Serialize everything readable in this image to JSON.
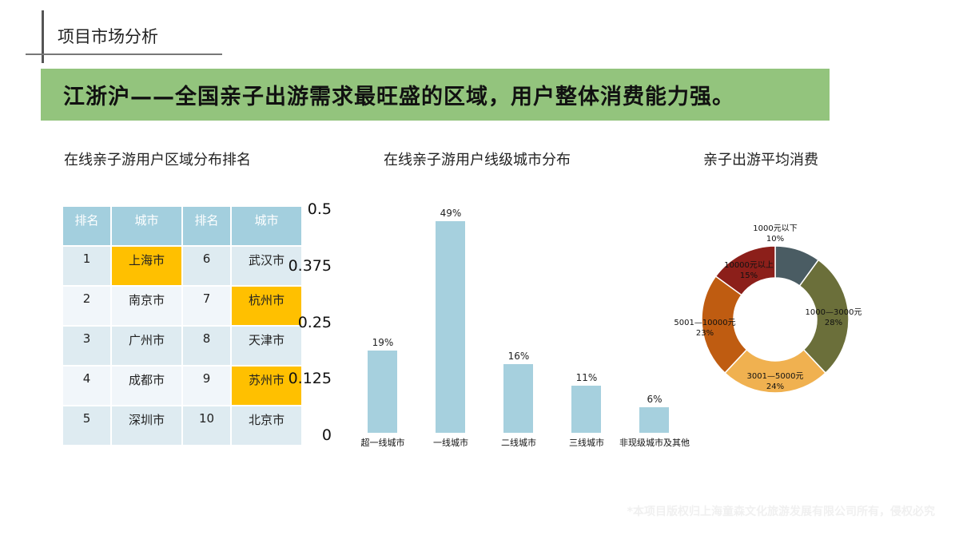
{
  "header": {
    "title": "项目市场分析",
    "banner": "江浙沪——全国亲子出游需求最旺盛的区域，用户整体消费能力强。"
  },
  "sections": {
    "ranking_title": "在线亲子游用户区域分布排名",
    "tier_title": "在线亲子游用户线级城市分布",
    "spend_title": "亲子出游平均消费"
  },
  "table": {
    "headers": [
      "排名",
      "城市",
      "排名",
      "城市"
    ],
    "rows": [
      {
        "rank_a": "1",
        "city_a": "上海市",
        "hl_a": true,
        "rank_b": "6",
        "city_b": "武汉市",
        "hl_b": false
      },
      {
        "rank_a": "2",
        "city_a": "南京市",
        "hl_a": false,
        "rank_b": "7",
        "city_b": "杭州市",
        "hl_b": true
      },
      {
        "rank_a": "3",
        "city_a": "广州市",
        "hl_a": false,
        "rank_b": "8",
        "city_b": "天津市",
        "hl_b": false
      },
      {
        "rank_a": "4",
        "city_a": "成都市",
        "hl_a": false,
        "rank_b": "9",
        "city_b": "苏州市",
        "hl_b": true
      },
      {
        "rank_a": "5",
        "city_a": "深圳市",
        "hl_a": false,
        "rank_b": "10",
        "city_b": "北京市",
        "hl_b": false
      }
    ],
    "highlight_color": "#ffc000"
  },
  "stray_axis": {
    "ticks": [
      "0.5",
      "0.375",
      "0.25",
      "0.125",
      "0"
    ]
  },
  "footer": {
    "note": "*本项目版权归上海童森文化旅游发展有限公司所有，侵权必究"
  },
  "chart_data": [
    {
      "type": "bar",
      "title": "在线亲子游用户线级城市分布",
      "categories": [
        "超一线城市",
        "一线城市",
        "二线城市",
        "三线城市",
        "非现级城市及其他"
      ],
      "values": [
        19,
        49,
        16,
        11,
        6
      ],
      "value_labels": [
        "19%",
        "49%",
        "16%",
        "11%",
        "6%"
      ],
      "xlabel": "",
      "ylabel": "",
      "ylim": [
        0,
        50
      ],
      "grid": false,
      "color": "#a6d0de"
    },
    {
      "type": "pie",
      "subtype": "donut",
      "title": "亲子出游平均消费",
      "categories": [
        "1000元以下",
        "1000—3000元",
        "3001—5000元",
        "5001—10000元",
        "10000元以上"
      ],
      "values": [
        10,
        28,
        24,
        23,
        15
      ],
      "value_labels": [
        "10%",
        "28%",
        "24%",
        "23%",
        "15%"
      ],
      "colors": [
        "#4a5c63",
        "#6b6f3a",
        "#f0b150",
        "#bf5c11",
        "#8c1f1a"
      ],
      "legend": "none"
    }
  ]
}
